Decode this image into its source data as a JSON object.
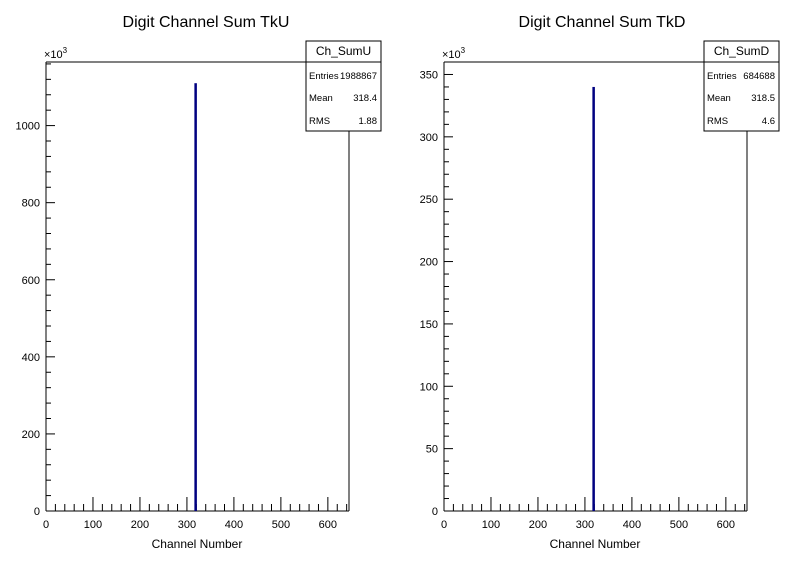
{
  "chart_data": [
    {
      "type": "bar",
      "title": "Digit Channel Sum TkU",
      "xlabel": "Channel Number",
      "ylabel": "",
      "exponent_label": "×10",
      "exponent_power": "3",
      "xlim": [
        0,
        645
      ],
      "ylim": [
        0,
        1165
      ],
      "xticks": [
        0,
        100,
        200,
        300,
        400,
        500,
        600
      ],
      "yticks": [
        0,
        200,
        400,
        600,
        800,
        1000
      ],
      "bins": [
        {
          "x": 318,
          "value": 1110
        }
      ],
      "stats": {
        "name": "Ch_SumU",
        "rows": [
          {
            "label": "Entries",
            "value": "1988867"
          },
          {
            "label": "Mean",
            "value": "318.4"
          },
          {
            "label": "RMS",
            "value": "1.88"
          }
        ]
      }
    },
    {
      "type": "bar",
      "title": "Digit Channel Sum TkD",
      "xlabel": "Channel Number",
      "ylabel": "",
      "exponent_label": "×10",
      "exponent_power": "3",
      "xlim": [
        0,
        645
      ],
      "ylim": [
        0,
        360
      ],
      "xticks": [
        0,
        100,
        200,
        300,
        400,
        500,
        600
      ],
      "yticks": [
        0,
        50,
        100,
        150,
        200,
        250,
        300,
        350
      ],
      "bins": [
        {
          "x": 318,
          "value": 340
        }
      ],
      "stats": {
        "name": "Ch_SumD",
        "rows": [
          {
            "label": "Entries",
            "value": "684688"
          },
          {
            "label": "Mean",
            "value": "318.5"
          },
          {
            "label": "RMS",
            "value": "4.6"
          }
        ]
      }
    }
  ],
  "colors": {
    "histogram": "#000080",
    "axis": "#000000",
    "background": "#ffffff"
  }
}
